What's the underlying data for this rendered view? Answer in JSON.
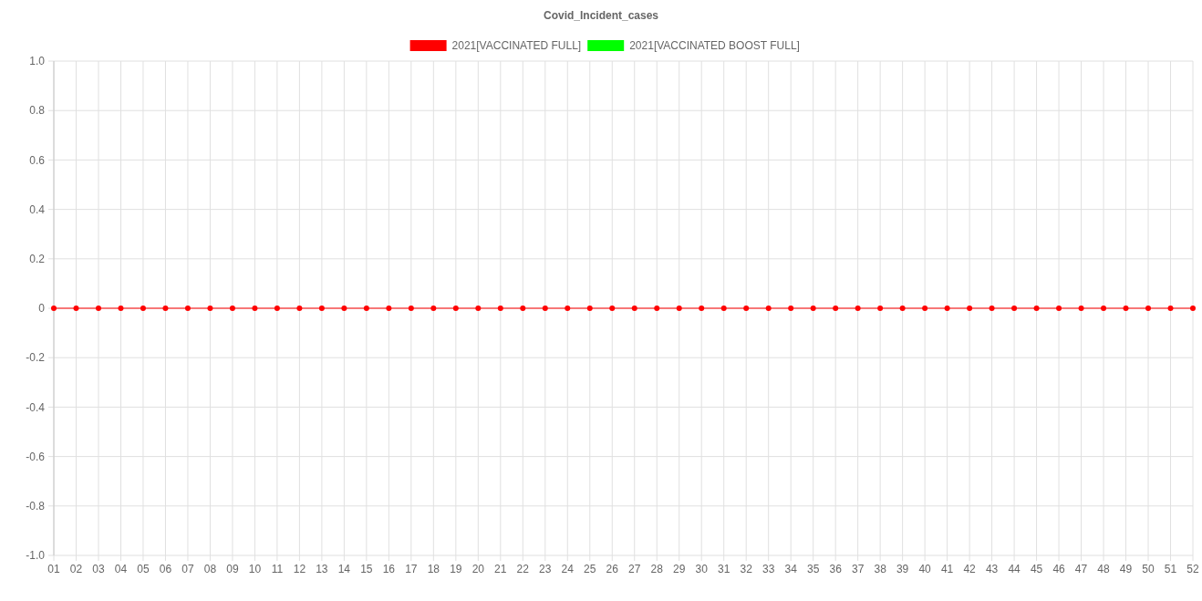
{
  "chart_data": {
    "type": "line",
    "title": "Covid_Incident_cases",
    "categories": [
      "01",
      "02",
      "03",
      "04",
      "05",
      "06",
      "07",
      "08",
      "09",
      "10",
      "11",
      "12",
      "13",
      "14",
      "15",
      "16",
      "17",
      "18",
      "19",
      "20",
      "21",
      "22",
      "23",
      "24",
      "25",
      "26",
      "27",
      "28",
      "29",
      "30",
      "31",
      "32",
      "33",
      "34",
      "35",
      "36",
      "37",
      "38",
      "39",
      "40",
      "41",
      "42",
      "43",
      "44",
      "45",
      "46",
      "47",
      "48",
      "49",
      "50",
      "51",
      "52"
    ],
    "series": [
      {
        "name": "2021[VACCINATED FULL]",
        "color": "#ff0000",
        "values": [
          0,
          0,
          0,
          0,
          0,
          0,
          0,
          0,
          0,
          0,
          0,
          0,
          0,
          0,
          0,
          0,
          0,
          0,
          0,
          0,
          0,
          0,
          0,
          0,
          0,
          0,
          0,
          0,
          0,
          0,
          0,
          0,
          0,
          0,
          0,
          0,
          0,
          0,
          0,
          0,
          0,
          0,
          0,
          0,
          0,
          0,
          0,
          0,
          0,
          0,
          0,
          0
        ]
      },
      {
        "name": "2021[VACCINATED BOOST FULL]",
        "color": "#00ff00",
        "values": [
          null,
          null,
          null,
          null,
          null,
          null,
          null,
          null,
          null,
          null,
          null,
          null,
          null,
          null,
          null,
          null,
          null,
          null,
          null,
          null,
          null,
          null,
          null,
          null,
          null,
          null,
          null,
          null,
          null,
          null,
          null,
          null,
          null,
          null,
          null,
          null,
          null,
          null,
          null,
          null,
          null,
          null,
          null,
          null,
          null,
          null,
          null,
          null,
          null,
          null,
          null,
          null
        ]
      }
    ],
    "ylim": [
      -1,
      1
    ],
    "yticks": [
      {
        "value": -1,
        "label": "-1.0"
      },
      -0.8,
      -0.6,
      -0.4,
      -0.2,
      0,
      0.2,
      0.4,
      0.6,
      0.8,
      {
        "value": 1,
        "label": "1.0"
      }
    ],
    "grid": true,
    "legend": "top",
    "marker": "circle",
    "line_style": "solid"
  }
}
